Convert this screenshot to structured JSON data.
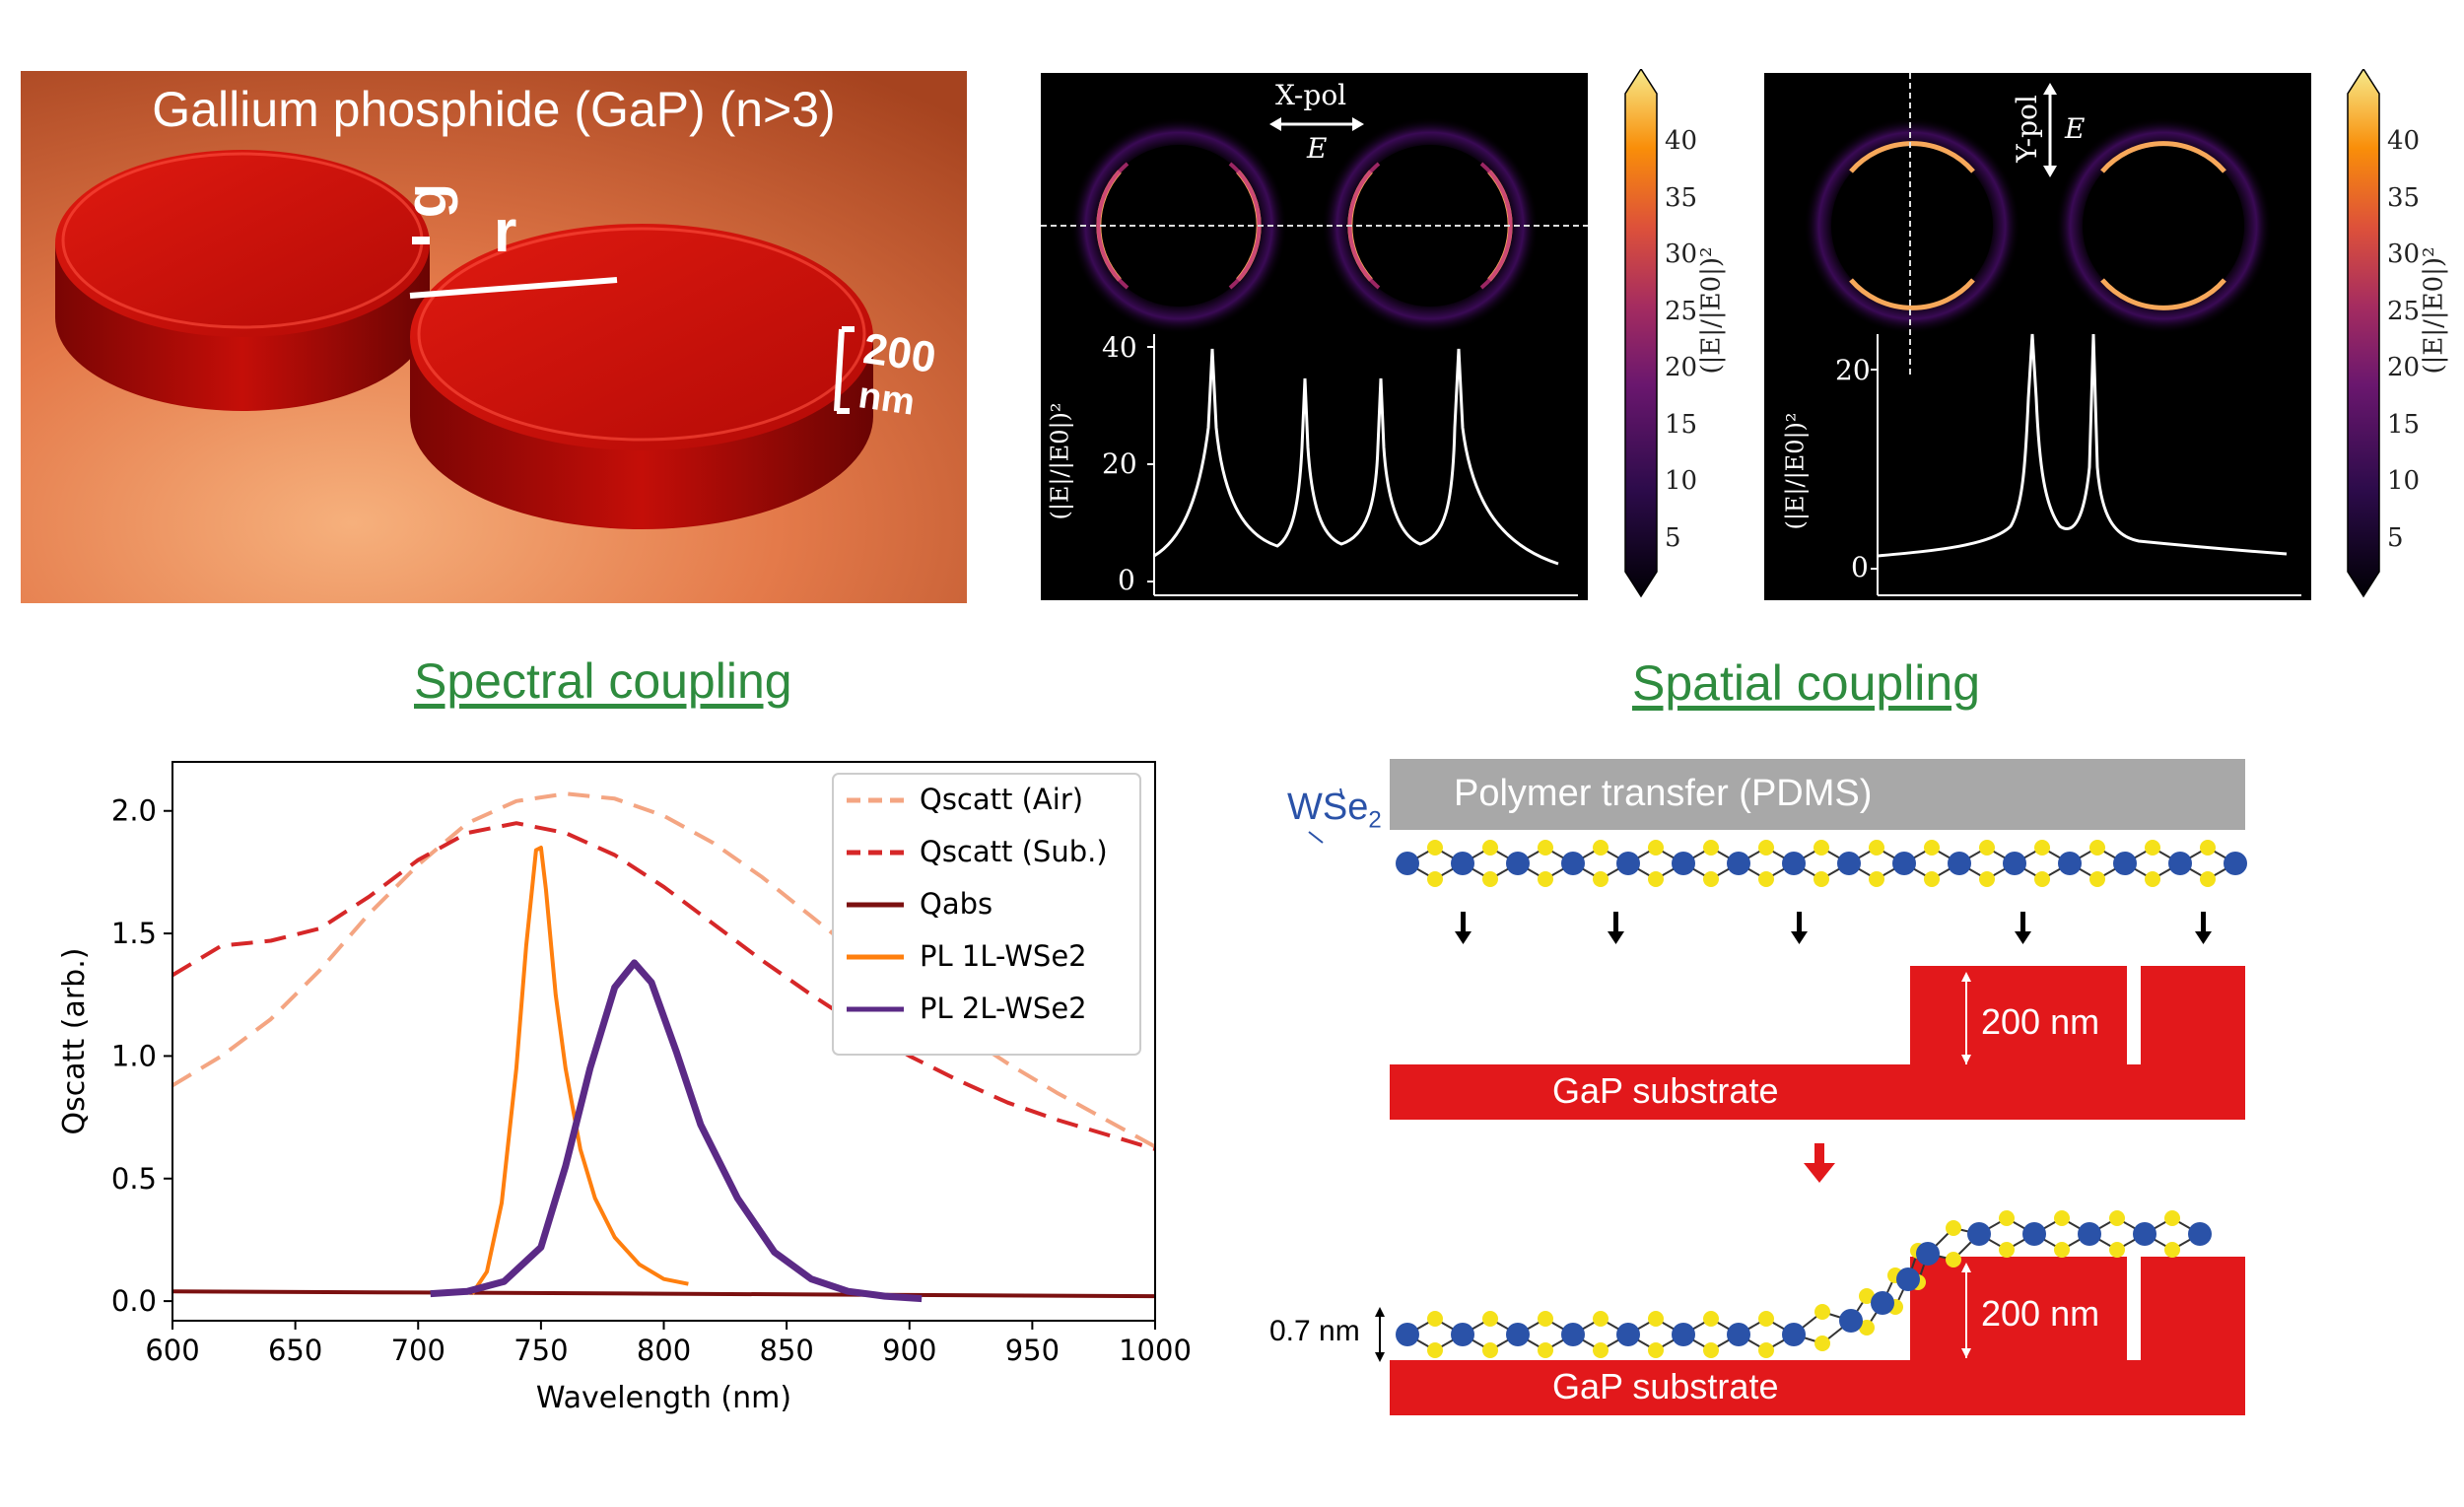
{
  "disk_panel": {
    "title": "Gallium phosphide (GaP) (n>3)",
    "gap_label": "g",
    "radius_label": "r",
    "height_value": "200",
    "height_unit": "nm"
  },
  "field_maps": [
    {
      "pol_label": "X-pol",
      "field_label": "E",
      "ylabel": "(|E|/|E0|)²",
      "yticks": [
        "0",
        "20",
        "40"
      ],
      "colorbar_label": "(|E|/|E0|)²",
      "colorbar_ticks": [
        "5",
        "10",
        "15",
        "20",
        "25",
        "30",
        "35",
        "40"
      ]
    },
    {
      "pol_label": "Y-pol",
      "field_label": "E",
      "ylabel": "(|E|/|E0|)²",
      "yticks": [
        "0",
        "20"
      ],
      "colorbar_label": "(|E|/|E0|)²",
      "colorbar_ticks": [
        "5",
        "10",
        "15",
        "20",
        "25",
        "30",
        "35",
        "40"
      ]
    }
  ],
  "section_titles": {
    "spectral": "Spectral coupling",
    "spatial": "Spatial coupling"
  },
  "chart_data": {
    "type": "line",
    "xlabel": "Wavelength (nm)",
    "ylabel": "Qscatt (arb.)",
    "xlim": [
      600,
      1000
    ],
    "ylim": [
      -0.08,
      2.2
    ],
    "xticks": [
      "600",
      "650",
      "700",
      "750",
      "800",
      "850",
      "900",
      "950",
      "1000"
    ],
    "yticks": [
      "0.0",
      "0.5",
      "1.0",
      "1.5",
      "2.0"
    ],
    "legend_position": "top-right",
    "series": [
      {
        "name": "Qscatt (Air)",
        "color": "#f4a582",
        "style": "dashed",
        "x": [
          600,
          620,
          640,
          660,
          680,
          700,
          720,
          740,
          760,
          780,
          800,
          820,
          840,
          860,
          880,
          900,
          920,
          940,
          960,
          980,
          1000
        ],
        "y": [
          0.88,
          1.0,
          1.15,
          1.35,
          1.58,
          1.78,
          1.95,
          2.04,
          2.07,
          2.05,
          1.98,
          1.87,
          1.73,
          1.57,
          1.41,
          1.25,
          1.1,
          0.97,
          0.85,
          0.74,
          0.63
        ]
      },
      {
        "name": "Qscatt (Sub.)",
        "color": "#d62728",
        "style": "dashed",
        "x": [
          600,
          620,
          640,
          660,
          680,
          700,
          720,
          740,
          760,
          780,
          800,
          820,
          840,
          860,
          880,
          900,
          920,
          940,
          960,
          980,
          1000
        ],
        "y": [
          1.33,
          1.45,
          1.47,
          1.52,
          1.65,
          1.8,
          1.91,
          1.95,
          1.91,
          1.82,
          1.69,
          1.54,
          1.39,
          1.25,
          1.12,
          1.0,
          0.9,
          0.81,
          0.74,
          0.68,
          0.62
        ]
      },
      {
        "name": "Qabs",
        "color": "#7b1010",
        "style": "solid",
        "x": [
          600,
          700,
          800,
          900,
          1000
        ],
        "y": [
          0.04,
          0.035,
          0.03,
          0.025,
          0.02
        ]
      },
      {
        "name": "PL 1L-WSe2",
        "color": "#ff7f0e",
        "style": "solid",
        "x": [
          722,
          728,
          734,
          740,
          744,
          748,
          750,
          752,
          756,
          760,
          766,
          772,
          780,
          790,
          800,
          810
        ],
        "y": [
          0.03,
          0.12,
          0.4,
          0.95,
          1.45,
          1.84,
          1.85,
          1.68,
          1.25,
          0.95,
          0.62,
          0.42,
          0.26,
          0.15,
          0.09,
          0.07
        ]
      },
      {
        "name": "PL 2L-WSe2",
        "color": "#5b2a86",
        "style": "solid",
        "x": [
          705,
          720,
          735,
          750,
          760,
          770,
          780,
          788,
          795,
          805,
          815,
          830,
          845,
          860,
          875,
          890,
          905
        ],
        "y": [
          0.03,
          0.04,
          0.08,
          0.22,
          0.55,
          0.95,
          1.28,
          1.38,
          1.3,
          1.02,
          0.72,
          0.42,
          0.2,
          0.09,
          0.04,
          0.02,
          0.01
        ]
      }
    ]
  },
  "schematic": {
    "wse2_label": "WSe",
    "wse2_sub": "2",
    "polymer_label": "Polymer transfer (PDMS)",
    "substrate_label": "GaP substrate",
    "height_label": "200 nm",
    "thickness_label": "0.7 nm"
  }
}
